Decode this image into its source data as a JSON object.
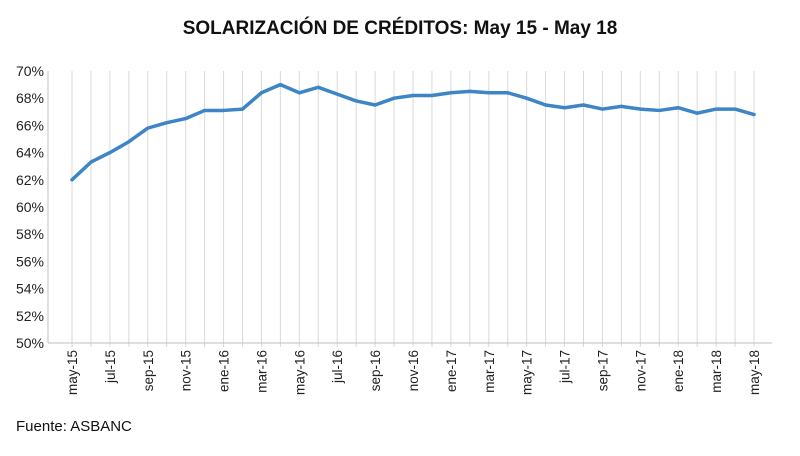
{
  "chart_data": {
    "type": "line",
    "title": "SOLARIZACIÓN DE CRÉDITOS: May 15 - May 18",
    "source": "Fuente: ASBANC",
    "xlabel": "",
    "ylabel": "",
    "ylim": [
      50,
      70
    ],
    "y_ticks": [
      "50%",
      "52%",
      "54%",
      "56%",
      "58%",
      "60%",
      "62%",
      "64%",
      "66%",
      "68%",
      "70%"
    ],
    "x_tick_labels": [
      "may-15",
      "jul-15",
      "sep-15",
      "nov-15",
      "ene-16",
      "mar-16",
      "may-16",
      "jul-16",
      "sep-16",
      "nov-16",
      "ene-17",
      "mar-17",
      "may-17",
      "jul-17",
      "sep-17",
      "nov-17",
      "ene-18",
      "mar-18",
      "may-18"
    ],
    "x": [
      "may-15",
      "jun-15",
      "jul-15",
      "ago-15",
      "sep-15",
      "oct-15",
      "nov-15",
      "dic-15",
      "ene-16",
      "feb-16",
      "mar-16",
      "abr-16",
      "may-16",
      "jun-16",
      "jul-16",
      "ago-16",
      "sep-16",
      "oct-16",
      "nov-16",
      "dic-16",
      "ene-17",
      "feb-17",
      "mar-17",
      "abr-17",
      "may-17",
      "jun-17",
      "jul-17",
      "ago-17",
      "sep-17",
      "oct-17",
      "nov-17",
      "dic-17",
      "ene-18",
      "feb-18",
      "mar-18",
      "abr-18",
      "may-18"
    ],
    "series": [
      {
        "name": "",
        "color": "#3d85c6",
        "values": [
          62.0,
          63.3,
          64.0,
          64.8,
          65.8,
          66.2,
          66.5,
          67.1,
          67.1,
          67.2,
          68.4,
          69.0,
          68.4,
          68.8,
          68.3,
          67.8,
          67.5,
          68.0,
          68.2,
          68.2,
          68.4,
          68.5,
          68.4,
          68.4,
          68.0,
          67.5,
          67.3,
          67.5,
          67.2,
          67.4,
          67.2,
          67.1,
          67.3,
          66.9,
          67.2,
          67.2,
          66.8
        ]
      }
    ],
    "grid": {
      "vertical": true,
      "horizontal": false
    },
    "axis_color": "#bfbfbf"
  }
}
